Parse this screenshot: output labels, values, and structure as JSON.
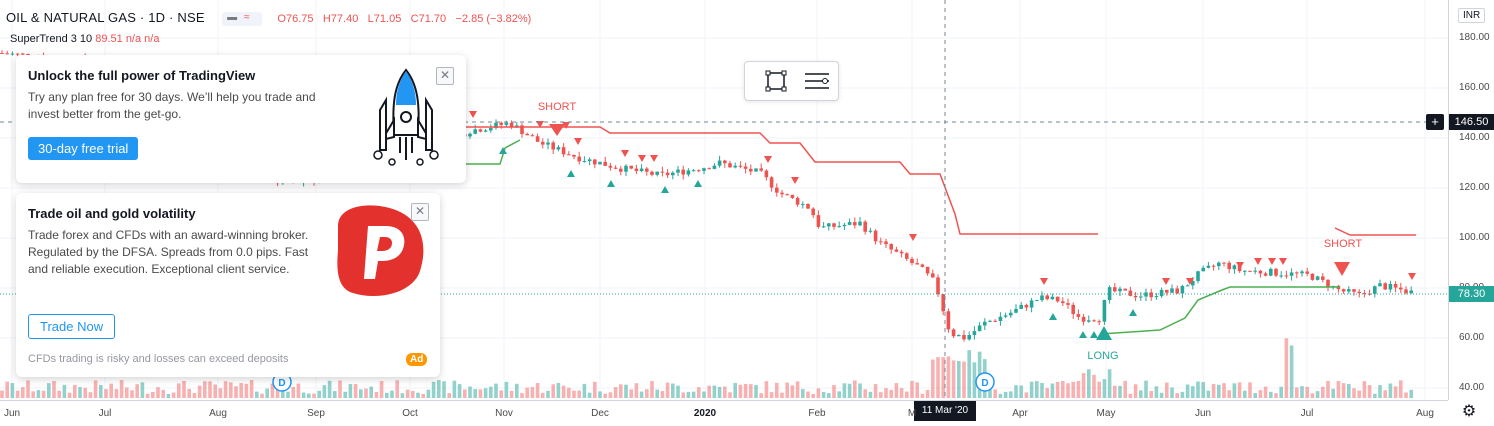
{
  "header": {
    "symbol": "OIL & NATURAL GAS · 1D · NSE",
    "open": "O76.75",
    "high": "H77.40",
    "low": "L71.05",
    "close": "C71.70",
    "change": "−2.85 (−3.82%)"
  },
  "indicator": {
    "name": "SuperTrend 3 10",
    "value": "89.51",
    "n1": "n/a",
    "n2": "n/a"
  },
  "currency": "INR",
  "price_axis": {
    "labels": [
      "180.00",
      "160.00",
      "140.00",
      "120.00",
      "100.00",
      "80.00",
      "60.00",
      "40.00"
    ],
    "crosshair_price": "146.50",
    "last_price": "78.30"
  },
  "time_axis": {
    "labels": [
      "Jun",
      "Jul",
      "Aug",
      "Sep",
      "Oct",
      "Nov",
      "Dec",
      "2020",
      "Feb",
      "M",
      "Apr",
      "May",
      "Jun",
      "Jul",
      "Aug"
    ],
    "crosshair_date": "11 Mar '20"
  },
  "annotations": {
    "short1": "SHORT",
    "short2": "SHORT",
    "long1": "LONG"
  },
  "events": {
    "dividend1": "D",
    "dividend2": "D"
  },
  "promo1": {
    "title": "Unlock the full power of TradingView",
    "body": "Try any plan free for 30 days. We’ll help you trade and invest better from the get-go.",
    "cta": "30-day free trial"
  },
  "promo2": {
    "title": "Trade oil and gold volatility",
    "body": "Trade forex and CFDs with an award-winning broker. Regulated by the DFSA. Spreads from 0.0 pips. Fast and reliable execution. Exceptional client service.",
    "cta": "Trade Now",
    "disclaimer": "CFDs trading is risky and losses can exceed deposits",
    "badge": "Ad"
  },
  "icons": {
    "close": "close-icon",
    "rectangle": "rectangle-icon",
    "settings": "settings-icon",
    "rocket": "rocket-icon",
    "broker_logo": "pepperstone-logo",
    "gear": "gear-icon"
  },
  "colors": {
    "up": "#26a69a",
    "down": "#ef5350",
    "supertrend_up": "#4caf50",
    "supertrend_down": "#ef5350",
    "accent": "#2196f3",
    "ad": "#ff9800"
  }
}
